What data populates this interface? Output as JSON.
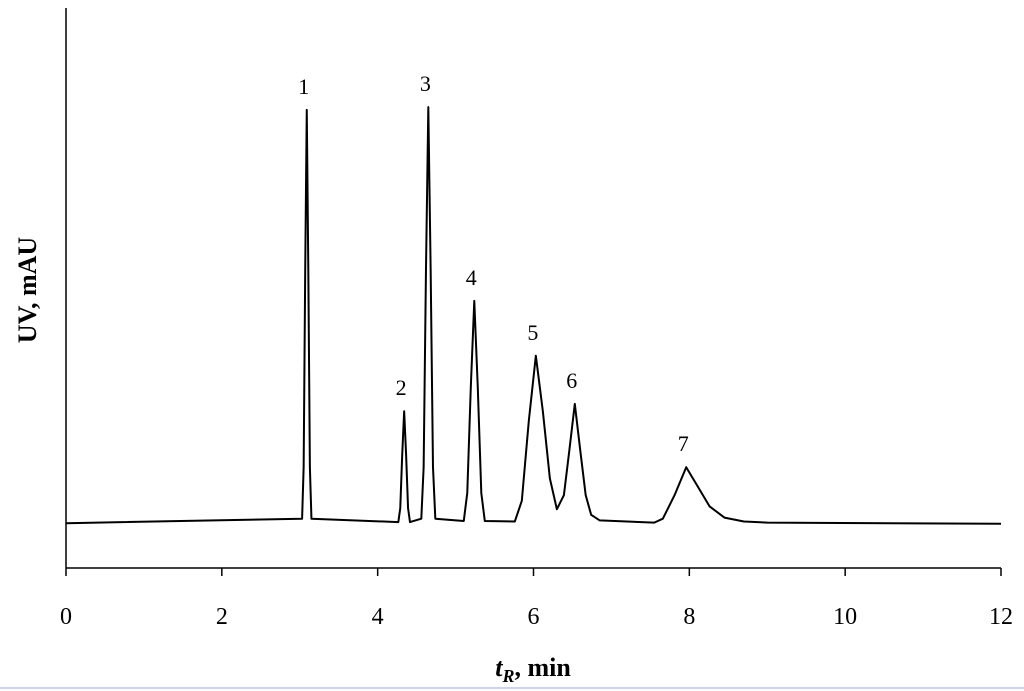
{
  "chart_data": {
    "type": "line",
    "xlabel": {
      "symbol": "t",
      "subscript": "R",
      "rest": ", min"
    },
    "ylabel": "UV, mAU",
    "xlim": [
      0,
      12
    ],
    "xticks": [
      0,
      2,
      4,
      6,
      8,
      10,
      12
    ],
    "ylim": [
      0,
      100
    ],
    "color": "#000000",
    "x": [
      0,
      3.03,
      3.05,
      3.07,
      3.09,
      3.11,
      3.13,
      3.15,
      4.265,
      4.29,
      4.315,
      4.34,
      4.365,
      4.39,
      4.415,
      4.56,
      4.59,
      4.62,
      4.65,
      4.68,
      4.71,
      4.74,
      5.105,
      5.15,
      5.195,
      5.24,
      5.285,
      5.33,
      5.375,
      5.76,
      5.85,
      5.94,
      6.03,
      6.12,
      6.21,
      6.3,
      6.39,
      6.46,
      6.53,
      6.6,
      6.67,
      6.74,
      6.85,
      7.55,
      7.66,
      7.81,
      7.96,
      8.11,
      8.26,
      8.45,
      8.7,
      9,
      12
    ],
    "series": [
      {
        "values": [
          8,
          8.8,
          18,
          53,
          81.8,
          53,
          18,
          8.8,
          8.2,
          10.7,
          20.2,
          28,
          20.2,
          10.7,
          8.2,
          8.8,
          18,
          53.3,
          82.3,
          53.3,
          18,
          8.8,
          8.4,
          13.4,
          32.2,
          47.7,
          32.2,
          13.4,
          8.4,
          8.3,
          12,
          26.3,
          37.9,
          28,
          16,
          10.5,
          13,
          21,
          29.3,
          21,
          13,
          9.5,
          8.5,
          8.1,
          8.8,
          13,
          18,
          14.5,
          11,
          9,
          8.3,
          8.1,
          7.9
        ]
      }
    ],
    "annotations": [
      {
        "text": "1",
        "x": 3.09,
        "y": 81.8
      },
      {
        "text": "2",
        "x": 4.34,
        "y": 28
      },
      {
        "text": "3",
        "x": 4.65,
        "y": 82.3
      },
      {
        "text": "4",
        "x": 5.24,
        "y": 47.7
      },
      {
        "text": "5",
        "x": 6.03,
        "y": 37.9
      },
      {
        "text": "6",
        "x": 6.53,
        "y": 29.3
      },
      {
        "text": "7",
        "x": 7.96,
        "y": 18
      }
    ]
  }
}
